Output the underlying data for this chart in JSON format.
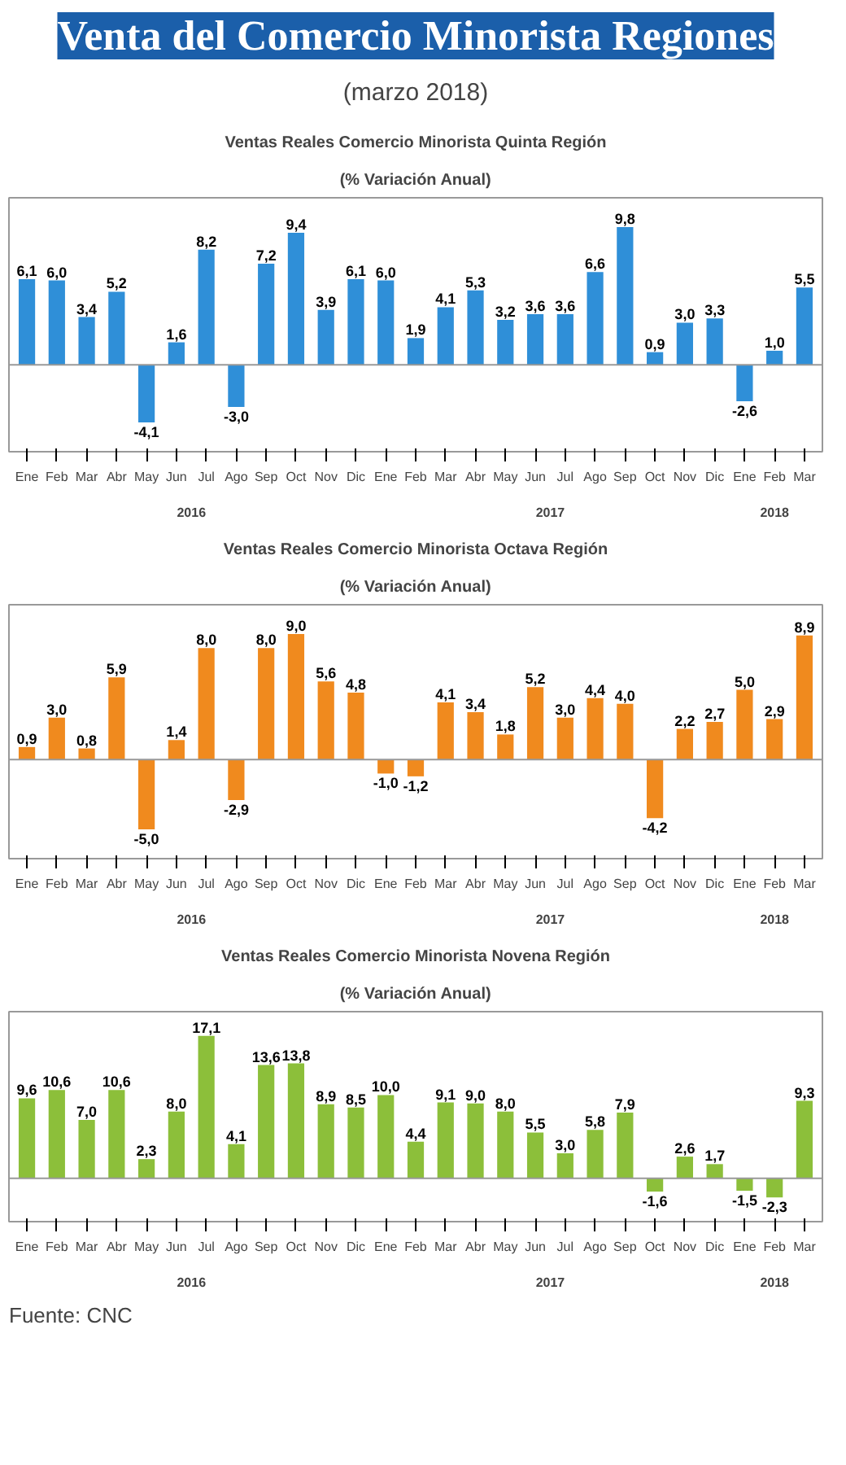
{
  "chart_data": [
    {
      "type": "other",
      "title": "Venta del Comercio Minorista Regiones",
      "subtitle": "(marzo 2018)"
    },
    {
      "type": "bar",
      "title": "Ventas Reales Comercio Minorista Quinta Región",
      "subtitle": "(% Variación Anual)",
      "color": "#2f8fd8",
      "grid": false,
      "categories": [
        "Ene",
        "Feb",
        "Mar",
        "Abr",
        "May",
        "Jun",
        "Jul",
        "Ago",
        "Sep",
        "Oct",
        "Nov",
        "Dic",
        "Ene",
        "Feb",
        "Mar",
        "Abr",
        "May",
        "Jun",
        "Jul",
        "Ago",
        "Sep",
        "Oct",
        "Nov",
        "Dic",
        "Ene",
        "Feb",
        "Mar"
      ],
      "values": [
        6.1,
        6.0,
        3.4,
        5.2,
        -4.1,
        1.6,
        8.2,
        -3.0,
        7.2,
        9.4,
        3.9,
        6.1,
        6.0,
        1.9,
        4.1,
        5.3,
        3.2,
        3.6,
        3.6,
        6.6,
        9.8,
        0.9,
        3.0,
        3.3,
        -2.6,
        1.0,
        5.5
      ],
      "value_labels": [
        "6,1",
        "6,0",
        "3,4",
        "5,2",
        "-4,1",
        "1,6",
        "8,2",
        "-3,0",
        "7,2",
        "9,4",
        "3,9",
        "6,1",
        "6,0",
        "1,9",
        "4,1",
        "5,3",
        "3,2",
        "3,6",
        "3,6",
        "6,6",
        "9,8",
        "0,9",
        "3,0",
        "3,3",
        "-2,6",
        "1,0",
        "5,5"
      ],
      "annotations": [
        "2016",
        "2017",
        "2018"
      ]
    },
    {
      "type": "bar",
      "title": "Ventas Reales Comercio Minorista Octava Región",
      "subtitle": "(% Variación Anual)",
      "color": "#f08a1e",
      "grid": false,
      "categories": [
        "Ene",
        "Feb",
        "Mar",
        "Abr",
        "May",
        "Jun",
        "Jul",
        "Ago",
        "Sep",
        "Oct",
        "Nov",
        "Dic",
        "Ene",
        "Feb",
        "Mar",
        "Abr",
        "May",
        "Jun",
        "Jul",
        "Ago",
        "Sep",
        "Oct",
        "Nov",
        "Dic",
        "Ene",
        "Feb",
        "Mar"
      ],
      "values": [
        0.9,
        3.0,
        0.8,
        5.9,
        -5.0,
        1.4,
        8.0,
        -2.9,
        8.0,
        9.0,
        5.6,
        4.8,
        -1.0,
        -1.2,
        4.1,
        3.4,
        1.8,
        5.2,
        3.0,
        4.4,
        4.0,
        -4.2,
        2.2,
        2.7,
        5.0,
        2.9,
        8.9
      ],
      "value_labels": [
        "0,9",
        "3,0",
        "0,8",
        "5,9",
        "-5,0",
        "1,4",
        "8,0",
        "-2,9",
        "8,0",
        "9,0",
        "5,6",
        "4,8",
        "-1,0",
        "-1,2",
        "4,1",
        "3,4",
        "1,8",
        "5,2",
        "3,0",
        "4,4",
        "4,0",
        "-4,2",
        "2,2",
        "2,7",
        "5,0",
        "2,9",
        "8,9"
      ],
      "annotations": [
        "2016",
        "2017",
        "2018"
      ]
    },
    {
      "type": "bar",
      "title": "Ventas Reales Comercio Minorista Novena Región",
      "subtitle": "(% Variación Anual)",
      "color": "#8cbf3a",
      "grid": false,
      "categories": [
        "Ene",
        "Feb",
        "Mar",
        "Abr",
        "May",
        "Jun",
        "Jul",
        "Ago",
        "Sep",
        "Oct",
        "Nov",
        "Dic",
        "Ene",
        "Feb",
        "Mar",
        "Abr",
        "May",
        "Jun",
        "Jul",
        "Ago",
        "Sep",
        "Oct",
        "Nov",
        "Dic",
        "Ene",
        "Feb",
        "Mar"
      ],
      "values": [
        9.6,
        10.6,
        7.0,
        10.6,
        2.3,
        8.0,
        17.1,
        4.1,
        13.6,
        13.8,
        8.9,
        8.5,
        10.0,
        4.4,
        9.1,
        9.0,
        8.0,
        5.5,
        3.0,
        5.8,
        7.9,
        -1.6,
        2.6,
        1.7,
        -1.5,
        -2.3,
        9.3
      ],
      "value_labels": [
        "9,6",
        "10,6",
        "7,0",
        "10,6",
        "2,3",
        "8,0",
        "17,1",
        "4,1",
        "13,6",
        "13,8",
        "8,9",
        "8,5",
        "10,0",
        "4,4",
        "9,1",
        "9,0",
        "8,0",
        "5,5",
        "3,0",
        "5,8",
        "7,9",
        "-1,6",
        "2,6",
        "1,7",
        "-1,5",
        "-2,3",
        "9,3"
      ],
      "annotations": [
        "2016",
        "2017",
        "2018",
        "Fuente: CNC"
      ]
    }
  ]
}
